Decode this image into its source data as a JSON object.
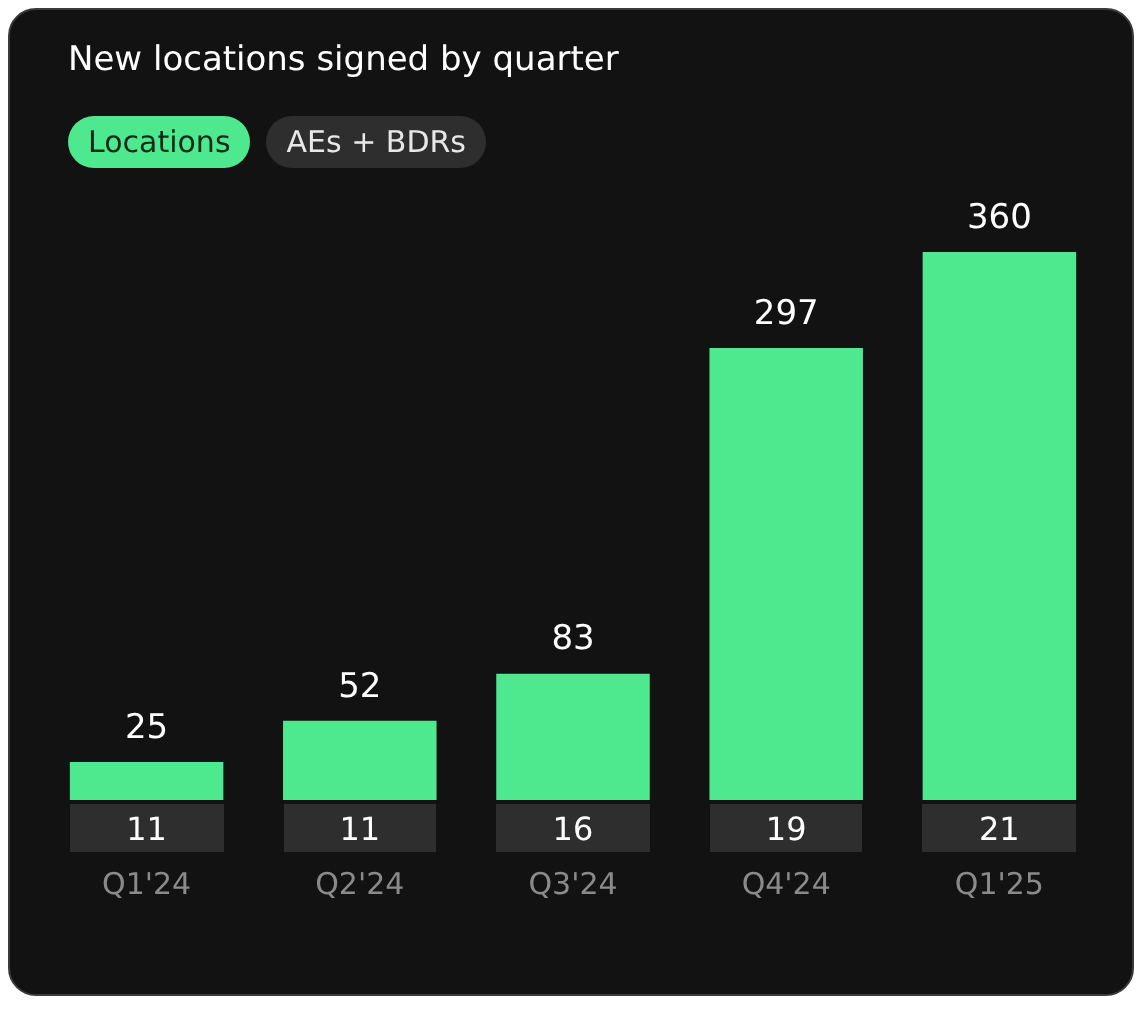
{
  "chart_data": {
    "type": "bar",
    "title": "New locations signed by quarter",
    "categories": [
      "Q1'24",
      "Q2'24",
      "Q3'24",
      "Q4'24",
      "Q1'25"
    ],
    "series": [
      {
        "name": "Locations",
        "color": "#4ee88e",
        "values": [
          25,
          52,
          83,
          297,
          360
        ]
      }
    ],
    "annotations": [
      "AEs + BDRs",
      "11",
      "11",
      "16",
      "19",
      "21"
    ],
    "data_labels": true,
    "legend": "top left",
    "grid": false,
    "ylim": [
      0,
      360
    ],
    "tick_labels": "x"
  }
}
